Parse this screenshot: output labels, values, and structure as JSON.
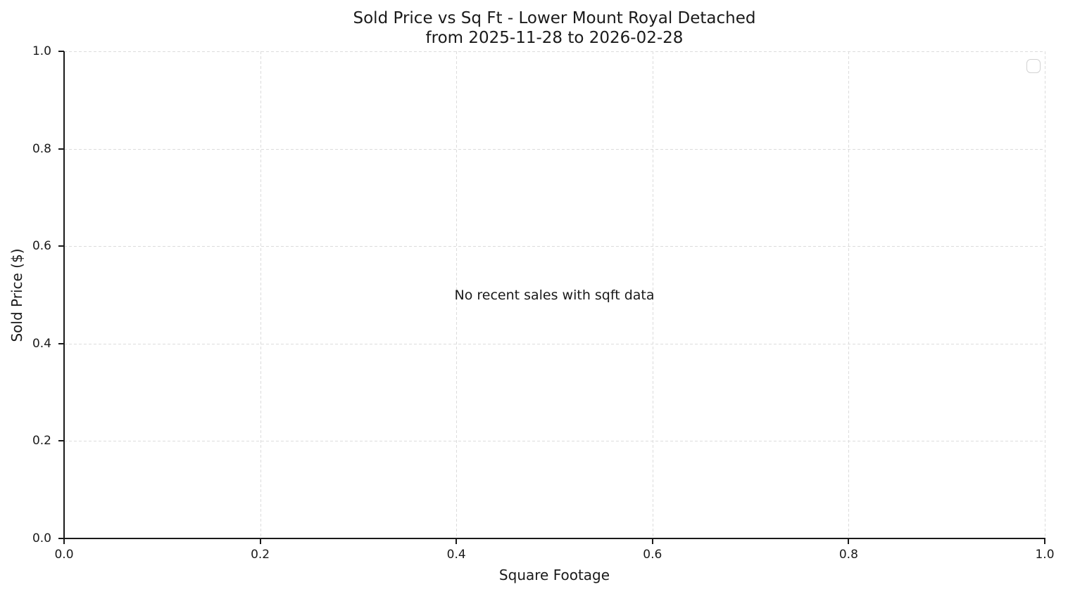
{
  "chart_data": {
    "type": "scatter",
    "title": "Sold Price vs Sq Ft - Lower Mount Royal Detached",
    "subtitle": "from 2025-11-28 to 2026-02-28",
    "xlabel": "Square Footage",
    "ylabel": "Sold Price ($)",
    "xlim": [
      0.0,
      1.0
    ],
    "ylim": [
      0.0,
      1.0
    ],
    "x_ticks": [
      "0.0",
      "0.2",
      "0.4",
      "0.6",
      "0.8",
      "1.0"
    ],
    "y_ticks": [
      "0.0",
      "0.2",
      "0.4",
      "0.6",
      "0.8",
      "1.0"
    ],
    "grid": "dashed, both axes",
    "legend_position": "upper right",
    "legend_entries": [],
    "series": [],
    "annotation": "No recent sales with sqft data",
    "colors": {
      "background": "#ffffff",
      "text": "#1a1a1a",
      "grid": "#dcdcdc",
      "spine": "#1a1a1a",
      "legend_border": "#d2d2d2"
    }
  }
}
